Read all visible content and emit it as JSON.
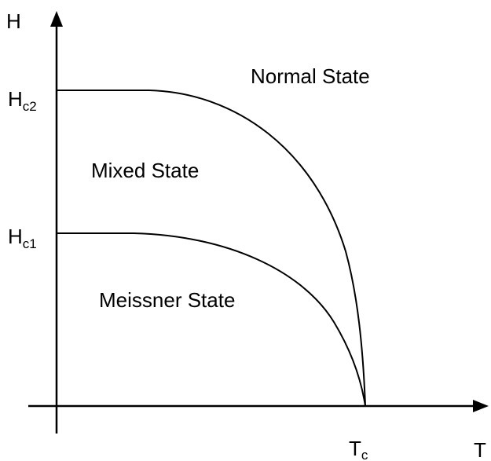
{
  "diagram": {
    "y_axis": {
      "symbol": "H",
      "ticks": [
        {
          "main": "H",
          "sub": "c2"
        },
        {
          "main": "H",
          "sub": "c1"
        }
      ]
    },
    "x_axis": {
      "symbol": "T",
      "tick": {
        "main": "T",
        "sub": "c"
      }
    },
    "regions": {
      "normal": "Normal State",
      "mixed": "Mixed State",
      "meissner": "Meissner State"
    },
    "line_color": "#000000"
  }
}
